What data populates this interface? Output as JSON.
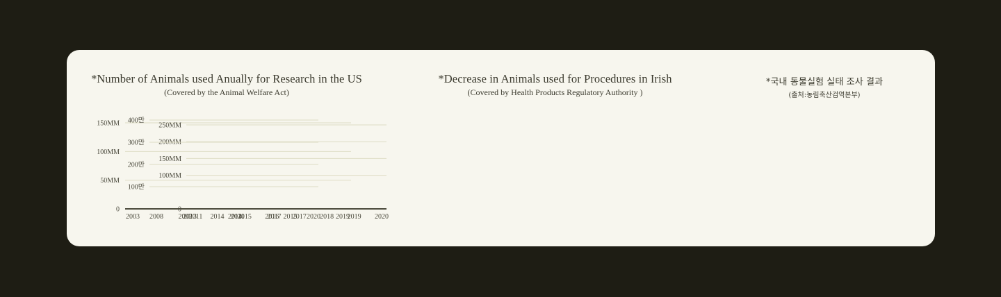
{
  "chart_data": [
    {
      "type": "line",
      "title": "*Number of Animals used Anually for Research in the US",
      "subtitle": "(Covered by the Animal Welfare Act)",
      "x": [
        "2003",
        "2007",
        "2011",
        "2015",
        "2019"
      ],
      "y_ticks": [
        "0",
        "50MM",
        "100MM",
        "150MM"
      ],
      "ylim": [
        0,
        150
      ],
      "series": [],
      "grid": true
    },
    {
      "type": "line",
      "title": "*Decrease in Animals used for Procedures in Irish",
      "subtitle": "(Covered by Health Products Regulatory Authority )",
      "x": [
        "2013",
        "2014",
        "2015",
        "2016",
        "2017",
        "2018",
        "2019",
        "2020"
      ],
      "y_ticks": [
        "0",
        "100MM",
        "150MM",
        "200MM",
        "250MM"
      ],
      "ylim": [
        0,
        250
      ],
      "series": [],
      "grid": true
    },
    {
      "type": "line",
      "title": "*국내 동물실험 실태 조사 결과",
      "subtitle": "(출처:농림축산검역본부)",
      "x": [
        "2008",
        "2011",
        "2014",
        "2017",
        "2020"
      ],
      "y_ticks": [
        "100만",
        "200만",
        "300만",
        "400만"
      ],
      "ylim": [
        0,
        400
      ],
      "series": [],
      "grid": true
    }
  ],
  "colors": {
    "background": "#1e1d14",
    "card": "#f7f6ee",
    "gridline": "#dedcc4",
    "axis": "#4b4a3c",
    "text": "#3c3b2f"
  }
}
